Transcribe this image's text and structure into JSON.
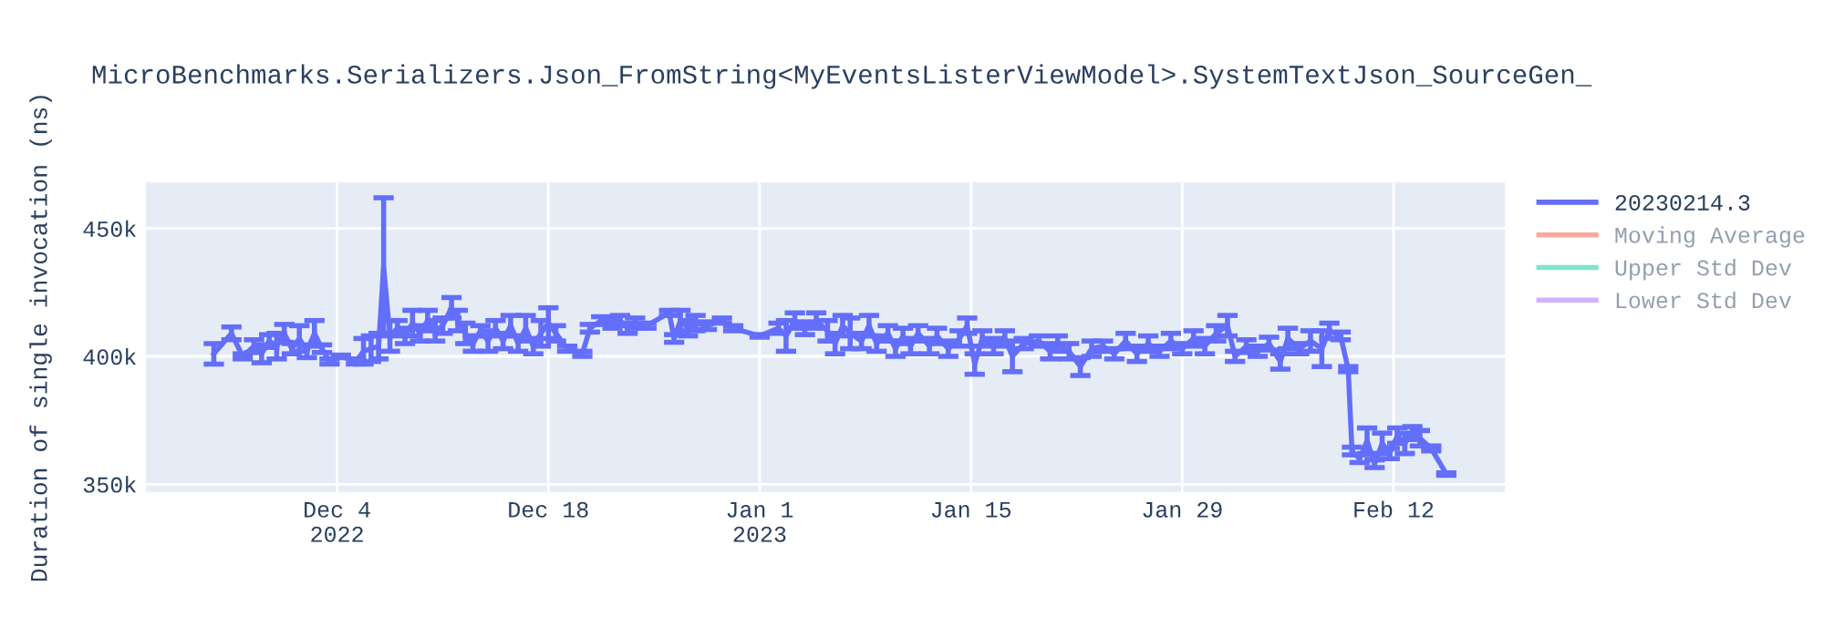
{
  "chart_data": {
    "type": "line",
    "title": "MicroBenchmarks.Serializers.Json_FromString<MyEventsListerViewModel>.SystemTextJson_SourceGen_",
    "ylabel": "Duration of single invocation (ns)",
    "x": [
      "2022-11-25T20:00",
      "2022-11-27T00:00",
      "2022-11-27T18:00",
      "2022-11-28T12:00",
      "2022-11-29T00:00",
      "2022-11-29T12:00",
      "2022-11-30T00:00",
      "2022-11-30T12:00",
      "2022-12-01T00:00",
      "2022-12-01T12:00",
      "2022-12-02T00:00",
      "2022-12-02T12:00",
      "2022-12-03T00:00",
      "2022-12-03T12:00",
      "2022-12-04T06:00",
      "2022-12-05T06:00",
      "2022-12-05T18:00",
      "2022-12-06T06:00",
      "2022-12-06T18:00",
      "2022-12-07T02:00",
      "2022-12-07T12:00",
      "2022-12-08T00:00",
      "2022-12-08T12:00",
      "2022-12-09T00:00",
      "2022-12-09T12:00",
      "2022-12-10T00:00",
      "2022-12-10T12:00",
      "2022-12-11T00:00",
      "2022-12-11T14:00",
      "2022-12-12T00:00",
      "2022-12-12T12:00",
      "2022-12-13T00:00",
      "2022-12-13T12:00",
      "2022-12-14T00:00",
      "2022-12-14T12:00",
      "2022-12-15T00:00",
      "2022-12-15T12:00",
      "2022-12-16T00:00",
      "2022-12-16T12:00",
      "2022-12-17T00:00",
      "2022-12-17T12:00",
      "2022-12-18T00:00",
      "2022-12-18T12:00",
      "2022-12-19T06:00",
      "2022-12-20T06:00",
      "2022-12-20T18:00",
      "2022-12-21T12:00",
      "2022-12-22T06:00",
      "2022-12-22T18:00",
      "2022-12-23T06:00",
      "2022-12-23T18:00",
      "2022-12-24T12:00",
      "2022-12-26T00:00",
      "2022-12-26T08:00",
      "2022-12-26T18:00",
      "2022-12-27T06:00",
      "2022-12-27T18:00",
      "2022-12-28T12:00",
      "2022-12-29T12:00",
      "2022-12-30T06:00",
      "2023-01-01T00:00",
      "2023-01-02T06:00",
      "2023-01-02T18:00",
      "2023-01-03T08:00",
      "2023-01-04T00:00",
      "2023-01-04T18:00",
      "2023-01-05T12:00",
      "2023-01-06T00:00",
      "2023-01-06T12:00",
      "2023-01-07T00:00",
      "2023-01-07T18:00",
      "2023-01-08T06:00",
      "2023-01-08T18:00",
      "2023-01-09T12:00",
      "2023-01-10T00:00",
      "2023-01-10T12:00",
      "2023-01-11T00:00",
      "2023-01-11T12:00",
      "2023-01-12T06:00",
      "2023-01-12T18:00",
      "2023-01-13T12:00",
      "2023-01-14T06:00",
      "2023-01-14T18:00",
      "2023-01-15T06:00",
      "2023-01-15T18:00",
      "2023-01-16T12:00",
      "2023-01-17T06:00",
      "2023-01-17T18:00",
      "2023-01-18T12:00",
      "2023-01-19T12:00",
      "2023-01-20T06:00",
      "2023-01-20T18:00",
      "2023-01-21T12:00",
      "2023-01-22T06:00",
      "2023-01-23T00:00",
      "2023-01-23T18:00",
      "2023-01-24T12:00",
      "2023-01-25T06:00",
      "2023-01-26T00:00",
      "2023-01-26T18:00",
      "2023-01-27T12:00",
      "2023-01-28T06:00",
      "2023-01-29T00:00",
      "2023-01-29T18:00",
      "2023-01-30T12:00",
      "2023-01-31T06:00",
      "2023-02-01T00:00",
      "2023-02-01T12:00",
      "2023-02-02T06:00",
      "2023-02-03T00:00",
      "2023-02-03T18:00",
      "2023-02-04T12:00",
      "2023-02-05T00:00",
      "2023-02-05T18:00",
      "2023-02-06T12:00",
      "2023-02-07T06:00",
      "2023-02-07T18:00",
      "2023-02-08T12:00",
      "2023-02-09T00:00",
      "2023-02-09T06:00",
      "2023-02-09T18:00",
      "2023-02-10T06:00",
      "2023-02-10T18:00",
      "2023-02-11T06:00",
      "2023-02-11T18:00",
      "2023-02-12T06:00",
      "2023-02-12T18:00",
      "2023-02-13T06:00",
      "2023-02-13T18:00",
      "2023-02-14T12:00",
      "2023-02-15T12:00"
    ],
    "series": [
      {
        "name": "20230214.3",
        "color": "#636efa",
        "values": [
          401000,
          409000,
          400000,
          404000,
          401000,
          406000,
          404000,
          409000,
          403000,
          407000,
          402000,
          409000,
          403000,
          398000,
          400000,
          398000,
          402000,
          403000,
          404000,
          435000,
          408000,
          411000,
          408000,
          413000,
          409000,
          414000,
          410000,
          412000,
          419000,
          414000,
          409000,
          405000,
          410000,
          406000,
          411000,
          406000,
          412000,
          405000,
          411000,
          404000,
          409000,
          413000,
          409000,
          403000,
          401000,
          411000,
          414000,
          413000,
          414000,
          411000,
          413000,
          412000,
          417000,
          407000,
          414000,
          411000,
          413000,
          412000,
          414000,
          411000,
          408000,
          411000,
          408000,
          414000,
          411000,
          414000,
          410000,
          405000,
          412000,
          409000,
          406000,
          412000,
          405000,
          409000,
          403000,
          408000,
          404000,
          409000,
          404000,
          408000,
          403000,
          407000,
          412000,
          397000,
          407000,
          404000,
          407000,
          400000,
          405000,
          406000,
          402000,
          405000,
          402000,
          396000,
          403000,
          404000,
          401000,
          406000,
          401000,
          405000,
          402000,
          406000,
          403000,
          407000,
          404000,
          409000,
          412000,
          400000,
          404000,
          402000,
          405000,
          398000,
          407000,
          403000,
          406000,
          403000,
          410000,
          408000,
          395000,
          363000,
          360000,
          367000,
          358000,
          366000,
          362000,
          369000,
          366000,
          370000,
          368000,
          364000,
          354000
        ],
        "errors": [
          4000,
          2500,
          1000,
          2500,
          3500,
          2500,
          5000,
          3500,
          2000,
          5000,
          2500,
          5000,
          1500,
          1000,
          500,
          1000,
          5000,
          5000,
          5000,
          27000,
          6000,
          3000,
          3000,
          5000,
          3000,
          4000,
          4000,
          3000,
          4000,
          4000,
          4000,
          3000,
          2000,
          4000,
          3000,
          3000,
          4000,
          3000,
          5000,
          3000,
          5000,
          6000,
          3000,
          1000,
          1000,
          1500,
          1500,
          2000,
          2000,
          2000,
          2000,
          1000,
          1000,
          1500,
          4000,
          3000,
          3000,
          1500,
          1000,
          1000,
          500,
          2000,
          6000,
          3000,
          2500,
          3000,
          4000,
          4000,
          4000,
          6000,
          3000,
          4000,
          3000,
          3000,
          3000,
          3000,
          3000,
          3000,
          3000,
          3000,
          3000,
          3000,
          3000,
          4000,
          3000,
          3000,
          3000,
          6000,
          2000,
          2000,
          3000,
          3000,
          3000,
          3500,
          3000,
          2000,
          2000,
          3000,
          3000,
          3000,
          2000,
          3000,
          2000,
          3000,
          3000,
          3000,
          4000,
          2000,
          2500,
          2000,
          2500,
          3000,
          4000,
          2000,
          4000,
          7000,
          3000,
          1500,
          1000,
          1500,
          1500,
          5000,
          1500,
          4000,
          2000,
          3000,
          4000,
          2500,
          3000,
          1000,
          500
        ]
      },
      {
        "name": "Moving Average",
        "color": "#ef553b",
        "values": [
          null,
          null,
          null,
          null,
          null,
          null,
          null,
          null,
          null,
          null,
          null,
          null,
          null,
          null,
          null,
          null,
          null,
          null,
          null,
          null,
          null,
          null,
          null,
          null,
          null,
          null,
          null,
          null,
          null,
          null,
          null,
          null,
          null,
          null,
          null,
          null,
          null,
          null,
          null,
          null,
          null,
          null,
          null,
          null,
          null,
          null,
          null,
          null,
          null,
          null,
          null,
          null,
          null,
          null,
          null,
          null,
          null,
          null,
          null,
          null,
          null,
          null,
          null,
          null,
          null,
          null,
          null,
          null,
          null,
          null,
          null,
          null,
          null,
          null,
          null,
          null,
          null,
          null,
          null,
          null,
          null,
          null,
          null,
          null,
          null,
          null,
          null,
          null,
          null,
          null,
          null,
          null,
          null,
          null,
          null,
          null,
          null,
          null,
          null,
          null,
          null,
          null,
          null,
          null,
          null,
          null,
          null,
          null,
          null,
          null,
          null,
          null,
          null,
          null,
          null,
          null,
          null,
          null,
          null,
          null,
          null,
          null,
          null,
          null,
          null,
          null,
          null,
          null,
          null,
          null,
          null
        ]
      },
      {
        "name": "Upper Std Dev",
        "color": "#00cc96",
        "values": [
          null,
          null,
          null,
          null,
          null,
          null,
          null,
          null,
          null,
          null,
          null,
          null,
          null,
          null,
          null,
          null,
          null,
          null,
          null,
          null,
          null,
          null,
          null,
          null,
          null,
          null,
          null,
          null,
          null,
          null,
          null,
          null,
          null,
          null,
          null,
          null,
          null,
          null,
          null,
          null,
          null,
          null,
          null,
          null,
          null,
          null,
          null,
          null,
          null,
          null,
          null,
          null,
          null,
          null,
          null,
          null,
          null,
          null,
          null,
          null,
          null,
          null,
          null,
          null,
          null,
          null,
          null,
          null,
          null,
          null,
          null,
          null,
          null,
          null,
          null,
          null,
          null,
          null,
          null,
          null,
          null,
          null,
          null,
          null,
          null,
          null,
          null,
          null,
          null,
          null,
          null,
          null,
          null,
          null,
          null,
          null,
          null,
          null,
          null,
          null,
          null,
          null,
          null,
          null,
          null,
          null,
          null,
          null,
          null,
          null,
          null,
          null,
          null,
          null,
          null,
          null,
          null,
          null,
          null,
          null,
          null,
          null,
          null,
          null,
          null,
          null,
          null,
          null,
          null,
          null,
          null
        ]
      },
      {
        "name": "Lower Std Dev",
        "color": "#ab63fa",
        "values": [
          null,
          null,
          null,
          null,
          null,
          null,
          null,
          null,
          null,
          null,
          null,
          null,
          null,
          null,
          null,
          null,
          null,
          null,
          null,
          null,
          null,
          null,
          null,
          null,
          null,
          null,
          null,
          null,
          null,
          null,
          null,
          null,
          null,
          null,
          null,
          null,
          null,
          null,
          null,
          null,
          null,
          null,
          null,
          null,
          null,
          null,
          null,
          null,
          null,
          null,
          null,
          null,
          null,
          null,
          null,
          null,
          null,
          null,
          null,
          null,
          null,
          null,
          null,
          null,
          null,
          null,
          null,
          null,
          null,
          null,
          null,
          null,
          null,
          null,
          null,
          null,
          null,
          null,
          null,
          null,
          null,
          null,
          null,
          null,
          null,
          null,
          null,
          null,
          null,
          null,
          null,
          null,
          null,
          null,
          null,
          null,
          null,
          null,
          null,
          null,
          null,
          null,
          null,
          null,
          null,
          null,
          null,
          null,
          null,
          null,
          null,
          null,
          null,
          null,
          null,
          null,
          null,
          null,
          null,
          null,
          null,
          null,
          null,
          null,
          null,
          null,
          null,
          null,
          null,
          null,
          null
        ]
      }
    ],
    "xlim": [
      "2022-11-21T08:00",
      "2023-02-19T09:00"
    ],
    "xticks": [
      {
        "value": "2022-12-04",
        "label": "Dec 4\n2022"
      },
      {
        "value": "2022-12-18",
        "label": "Dec 18"
      },
      {
        "value": "2023-01-01",
        "label": "Jan 1\n2023"
      },
      {
        "value": "2023-01-15",
        "label": "Jan 15"
      },
      {
        "value": "2023-01-29",
        "label": "Jan 29"
      },
      {
        "value": "2023-02-12",
        "label": "Feb 12"
      }
    ],
    "ylim": [
      347000,
      468000
    ],
    "yticks": [
      {
        "value": 350000,
        "label": "350k"
      },
      {
        "value": 400000,
        "label": "400k"
      },
      {
        "value": 450000,
        "label": "450k"
      }
    ],
    "grid": true,
    "legend": "right",
    "marker": "none",
    "line_style": "solid"
  }
}
